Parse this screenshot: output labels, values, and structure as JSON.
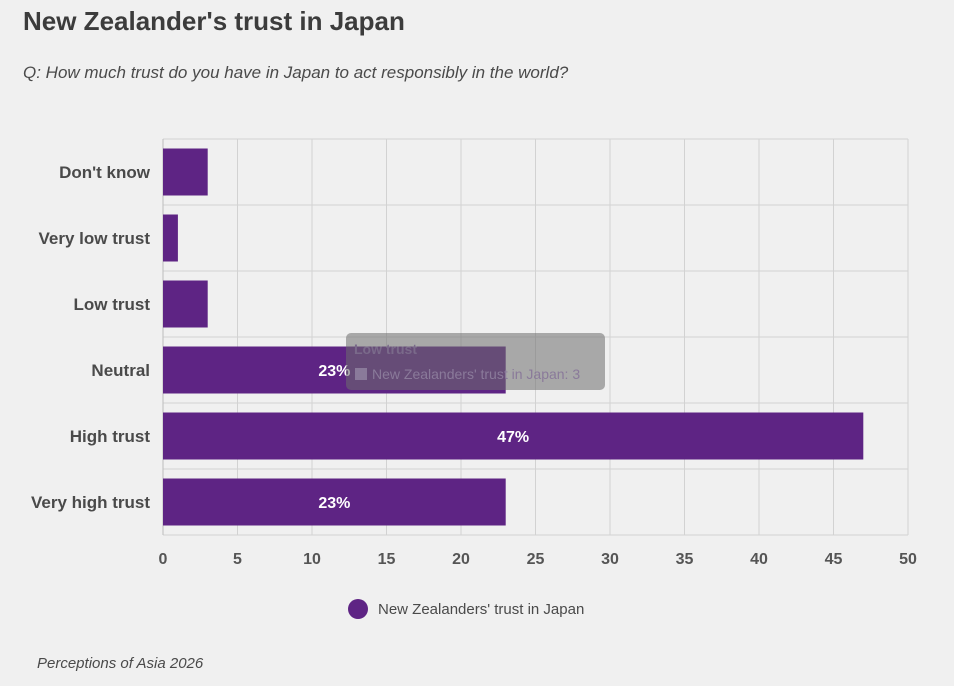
{
  "header": {
    "title": "New Zealander's trust in Japan",
    "subtitle": "Q: How much trust do you have in Japan to act responsibly in the world?"
  },
  "footer": {
    "source": "Perceptions of Asia 2026"
  },
  "tooltip": {
    "title": "Low trust",
    "body": "New Zealanders' trust in Japan: 3"
  },
  "chart_data": {
    "type": "bar",
    "orientation": "horizontal",
    "title": "New Zealander's trust in Japan",
    "xlabel": "",
    "ylabel": "",
    "categories": [
      "Don't know",
      "Very low trust",
      "Low trust",
      "Neutral",
      "High trust",
      "Very high trust"
    ],
    "series": [
      {
        "name": "New Zealanders' trust in Japan",
        "values": [
          3,
          1,
          3,
          23,
          47,
          23
        ],
        "data_labels": [
          "",
          "",
          "",
          "23%",
          "47%",
          "23%"
        ],
        "color": "#5e2484"
      }
    ],
    "xlim": [
      0,
      50
    ],
    "xticks": [
      0,
      5,
      10,
      15,
      20,
      25,
      30,
      35,
      40,
      45,
      50
    ],
    "grid": true,
    "legend_position": "bottom"
  }
}
